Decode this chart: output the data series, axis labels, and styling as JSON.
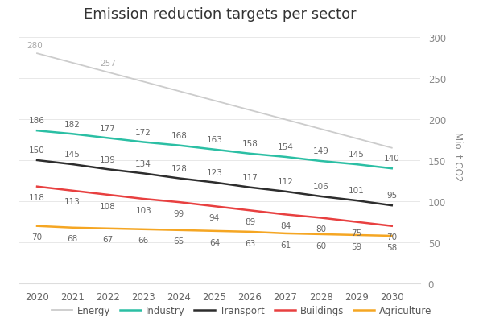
{
  "title": "Emission reduction targets per sector",
  "years": [
    2020,
    2021,
    2022,
    2023,
    2024,
    2025,
    2026,
    2027,
    2028,
    2029,
    2030
  ],
  "energy_full": [
    280,
    268.5,
    257,
    245.5,
    234,
    222.5,
    211,
    199.5,
    188,
    176.5,
    165
  ],
  "series": {
    "Industry": [
      186,
      182,
      177,
      172,
      168,
      163,
      158,
      154,
      149,
      145,
      140
    ],
    "Transport": [
      150,
      145,
      139,
      134,
      128,
      123,
      117,
      112,
      106,
      101,
      95
    ],
    "Buildings": [
      118,
      113,
      108,
      103,
      99,
      94,
      89,
      84,
      80,
      75,
      70
    ],
    "Agriculture": [
      70,
      68,
      67,
      66,
      65,
      64,
      63,
      61,
      60,
      59,
      58
    ]
  },
  "colors": {
    "Energy": "#cccccc",
    "Industry": "#2bbfa4",
    "Transport": "#2d2d2d",
    "Buildings": "#e84040",
    "Agriculture": "#f5a623"
  },
  "ylabel_right": "Mio. t CO2",
  "ylim": [
    0,
    310
  ],
  "yticks_right": [
    0,
    50,
    100,
    150,
    200,
    250,
    300
  ],
  "background_color": "#ffffff",
  "annotation_fontsize": 7.5,
  "title_fontsize": 13,
  "legend_fontsize": 8.5,
  "energy_ann": {
    "2020": 280,
    "2022": 257
  },
  "annotations": {
    "Industry": [
      186,
      182,
      177,
      172,
      168,
      163,
      158,
      154,
      149,
      145,
      140
    ],
    "Transport": [
      150,
      145,
      139,
      134,
      128,
      123,
      117,
      112,
      106,
      101,
      95
    ],
    "Buildings": [
      118,
      113,
      108,
      103,
      99,
      94,
      89,
      84,
      80,
      75,
      70
    ],
    "Agriculture": [
      70,
      68,
      67,
      66,
      65,
      64,
      63,
      61,
      60,
      59,
      58
    ]
  }
}
